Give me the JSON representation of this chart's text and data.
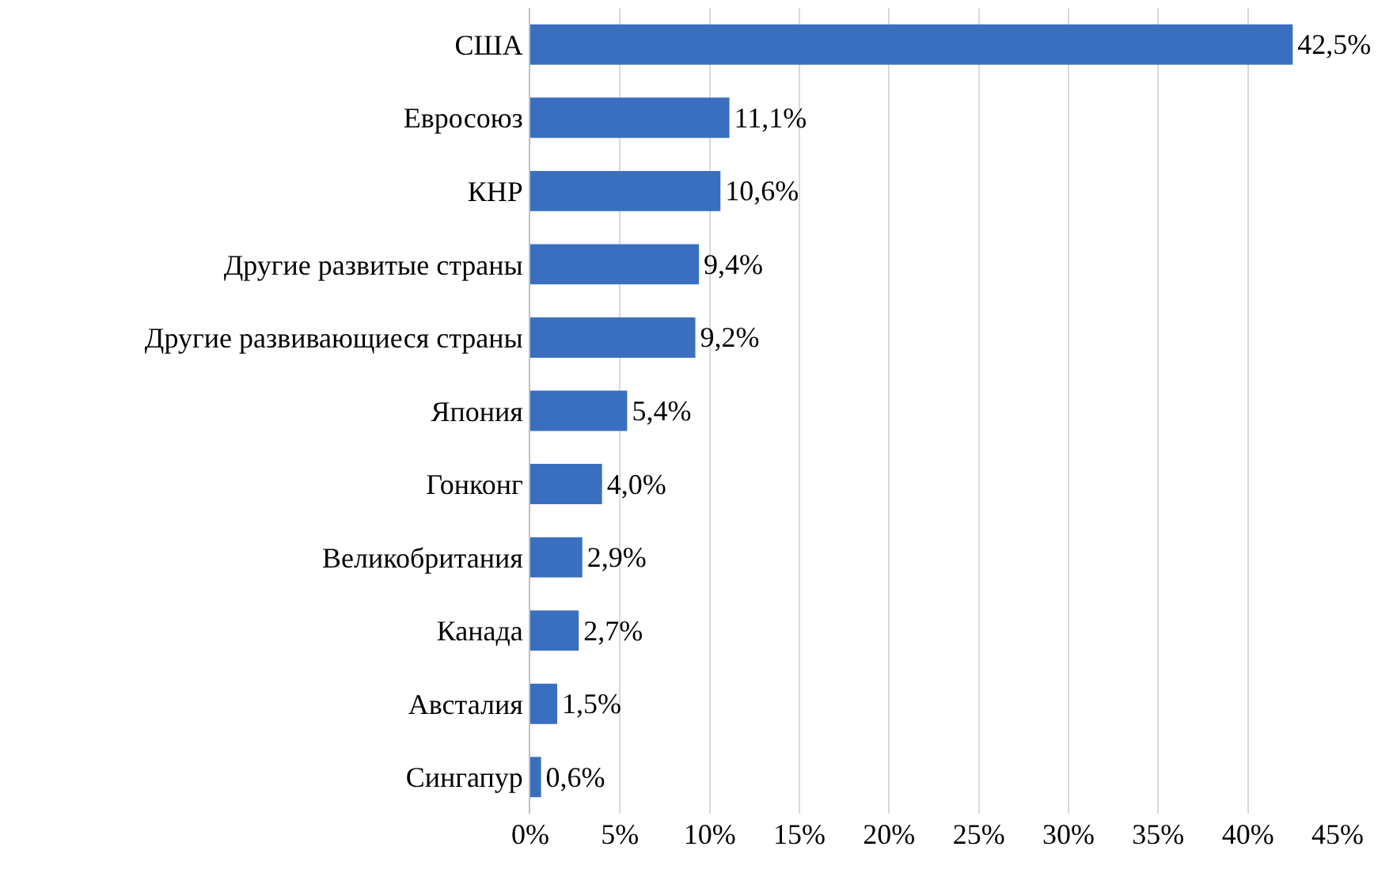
{
  "chart_data": {
    "type": "bar",
    "orientation": "horizontal",
    "categories": [
      "США",
      "Евросоюз",
      "КНР",
      "Другие развитые страны",
      "Другие развивающиеся страны",
      "Япония",
      "Гонконг",
      "Великобритания",
      "Канада",
      "Австалия",
      "Сингапур"
    ],
    "values": [
      42.5,
      11.1,
      10.6,
      9.4,
      9.2,
      5.4,
      4.0,
      2.9,
      2.7,
      1.5,
      0.6
    ],
    "value_labels": [
      "42,5%",
      "11,1%",
      "10,6%",
      "9,4%",
      "9,2%",
      "5,4%",
      "4,0%",
      "2,9%",
      "2,7%",
      "1,5%",
      "0,6%"
    ],
    "color": "#3a6fc0",
    "xlim": [
      0,
      45
    ],
    "xticks": [
      {
        "value": 0,
        "label": "0%"
      },
      {
        "value": 5,
        "label": "5%"
      },
      {
        "value": 10,
        "label": "10%"
      },
      {
        "value": 15,
        "label": "15%"
      },
      {
        "value": 20,
        "label": "20%"
      },
      {
        "value": 25,
        "label": "25%"
      },
      {
        "value": 30,
        "label": "30%"
      },
      {
        "value": 35,
        "label": "35%"
      },
      {
        "value": 40,
        "label": "40%"
      },
      {
        "value": 45,
        "label": "45%"
      }
    ],
    "grid": "x",
    "legend": false
  }
}
